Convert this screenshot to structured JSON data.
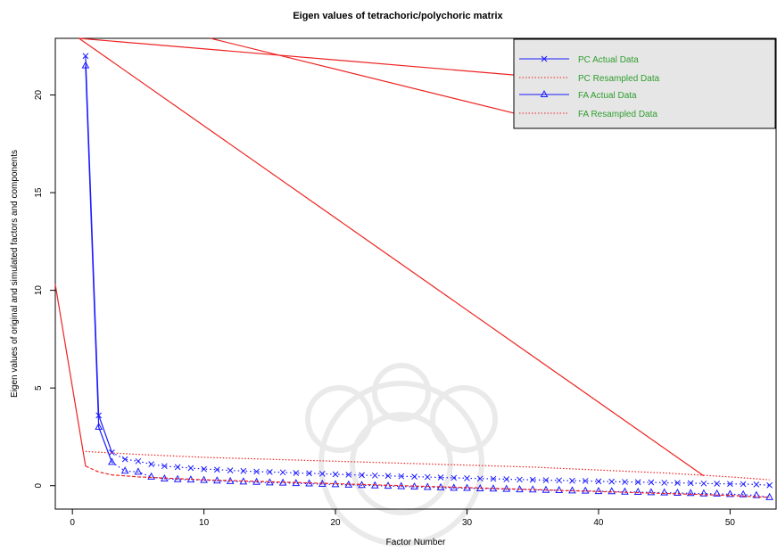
{
  "chart_data": {
    "type": "scatter",
    "title": "Eigen values of tetrachoric/polychoric matrix",
    "xlabel": "Factor Number",
    "ylabel": "Eigen values of original  and simulated factors and components",
    "xlim": [
      -1.3,
      53.5
    ],
    "ylim": [
      -1.2,
      22.9
    ],
    "x_ticks": [
      0,
      10,
      20,
      30,
      40,
      50
    ],
    "x_tick_labels": [
      "0",
      "10",
      "20",
      "30",
      "40",
      "50"
    ],
    "y_ticks": [
      0,
      5,
      10,
      15,
      20
    ],
    "y_tick_labels": [
      "0",
      "5",
      "10",
      "15",
      "20"
    ],
    "grid": false,
    "legend_position": "top-right",
    "legend": [
      {
        "label": "PC  Actual Data",
        "line": "solid",
        "color": "#1a1aff",
        "marker": "x"
      },
      {
        "label": "PC  Resampled Data",
        "line": "dotted",
        "color": "#ee2222",
        "marker": "none"
      },
      {
        "label": "FA  Actual Data",
        "line": "solid",
        "color": "#1a1aff",
        "marker": "triangle"
      },
      {
        "label": "FA  Resampled Data",
        "line": "dotted",
        "color": "#ee2222",
        "marker": "none"
      }
    ],
    "colors": {
      "actual": "#1a1aff",
      "resampled": "#ee2222",
      "legend_text": "#2e9e2e",
      "legend_bg": "#e6e6e6",
      "red_line": "#ee2222"
    },
    "series": [
      {
        "name": "PC  Actual Data",
        "style": "solid-then-dotted",
        "marker": "x",
        "x": [
          1,
          2,
          3,
          4,
          5,
          6,
          7,
          8,
          9,
          10,
          11,
          12,
          13,
          14,
          15,
          16,
          17,
          18,
          19,
          20,
          21,
          22,
          23,
          24,
          25,
          26,
          27,
          28,
          29,
          30,
          31,
          32,
          33,
          34,
          35,
          36,
          37,
          38,
          39,
          40,
          41,
          42,
          43,
          44,
          45,
          46,
          47,
          48,
          49,
          50,
          51,
          52,
          53
        ],
        "values": [
          22.0,
          3.6,
          1.7,
          1.35,
          1.25,
          1.1,
          1.0,
          0.95,
          0.9,
          0.85,
          0.82,
          0.78,
          0.75,
          0.72,
          0.7,
          0.68,
          0.65,
          0.63,
          0.61,
          0.58,
          0.56,
          0.54,
          0.52,
          0.5,
          0.48,
          0.46,
          0.44,
          0.42,
          0.4,
          0.38,
          0.36,
          0.35,
          0.33,
          0.31,
          0.3,
          0.28,
          0.27,
          0.25,
          0.24,
          0.22,
          0.21,
          0.19,
          0.18,
          0.17,
          0.15,
          0.14,
          0.13,
          0.11,
          0.1,
          0.09,
          0.08,
          0.06,
          0.02
        ]
      },
      {
        "name": "PC  Resampled Data",
        "style": "dotted",
        "x": [
          1,
          5,
          10,
          15,
          20,
          25,
          30,
          35,
          40,
          45,
          50,
          53
        ],
        "values": [
          1.75,
          1.6,
          1.45,
          1.35,
          1.25,
          1.15,
          1.05,
          0.95,
          0.8,
          0.65,
          0.45,
          0.3
        ]
      },
      {
        "name": "FA  Actual Data",
        "style": "solid-then-dotted",
        "marker": "triangle",
        "x": [
          1,
          2,
          3,
          4,
          5,
          6,
          7,
          8,
          9,
          10,
          11,
          12,
          13,
          14,
          15,
          16,
          17,
          18,
          19,
          20,
          21,
          22,
          23,
          24,
          25,
          26,
          27,
          28,
          29,
          30,
          31,
          32,
          33,
          34,
          35,
          36,
          37,
          38,
          39,
          40,
          41,
          42,
          43,
          44,
          45,
          46,
          47,
          48,
          49,
          50,
          51,
          52,
          53
        ],
        "values": [
          21.5,
          3.0,
          1.2,
          0.75,
          0.7,
          0.45,
          0.35,
          0.32,
          0.3,
          0.28,
          0.25,
          0.22,
          0.2,
          0.18,
          0.15,
          0.14,
          0.12,
          0.1,
          0.08,
          0.06,
          0.04,
          0.02,
          0.0,
          -0.02,
          -0.04,
          -0.06,
          -0.08,
          -0.1,
          -0.12,
          -0.13,
          -0.15,
          -0.16,
          -0.18,
          -0.2,
          -0.21,
          -0.23,
          -0.24,
          -0.26,
          -0.27,
          -0.29,
          -0.3,
          -0.32,
          -0.33,
          -0.35,
          -0.36,
          -0.38,
          -0.39,
          -0.41,
          -0.42,
          -0.44,
          -0.46,
          -0.5,
          -0.6
        ]
      },
      {
        "name": "FA  Resampled Data",
        "style": "dashed",
        "x": [
          1,
          2,
          3,
          5,
          10,
          15,
          20,
          25,
          30,
          35,
          40,
          45,
          50,
          53
        ],
        "values": [
          1.0,
          0.7,
          0.55,
          0.45,
          0.3,
          0.2,
          0.1,
          0.0,
          -0.1,
          -0.2,
          -0.3,
          -0.4,
          -0.5,
          -0.6
        ]
      }
    ],
    "annotation_lines": [
      {
        "x1": -1.3,
        "y1": 10.3,
        "x2": 1.0,
        "y2": 1.0
      },
      {
        "x1": 0.5,
        "y1": 22.9,
        "x2": 48.0,
        "y2": 0.5
      },
      {
        "x1": 0.5,
        "y1": 22.9,
        "x2": 34.0,
        "y2": 21.0
      },
      {
        "x1": 10.5,
        "y1": 22.9,
        "x2": 34.0,
        "y2": 19.0
      }
    ]
  }
}
